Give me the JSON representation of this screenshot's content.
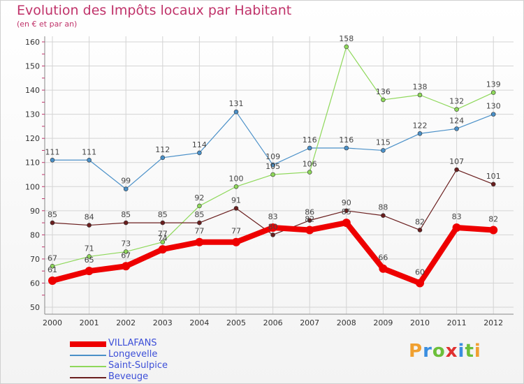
{
  "title": "Evolution des Impôts locaux par Habitant",
  "subtitle": "(en € et par an)",
  "logo": {
    "letters": [
      "P",
      "r",
      "o",
      "x",
      "i",
      "t",
      "i"
    ],
    "colors": [
      "#f0a030",
      "#3a8ee0",
      "#6cbf3a",
      "#e03030",
      "#3a8ee0",
      "#6cbf3a",
      "#f0a030"
    ]
  },
  "chart_data": {
    "type": "line",
    "title": "Evolution des Impôts locaux par Habitant",
    "subtitle": "(en € et par an)",
    "x": [
      "2000",
      "2001",
      "2002",
      "2003",
      "2004",
      "2005",
      "2006",
      "2007",
      "2008",
      "2009",
      "2010",
      "2011",
      "2012"
    ],
    "ylim": [
      50,
      160
    ],
    "yticks": [
      50,
      60,
      70,
      80,
      90,
      100,
      110,
      120,
      130,
      140,
      150,
      160
    ],
    "grid": true,
    "series": [
      {
        "name": "VILLAFANS",
        "color": "#ee0000",
        "line_width": 8,
        "marker_radius": 6,
        "values": [
          61,
          65,
          67,
          74,
          77,
          77,
          83,
          82,
          85,
          66,
          60,
          83,
          82
        ],
        "labels": [
          "61",
          "65",
          "67",
          "74",
          "77",
          "77",
          "83",
          "82",
          "85",
          "66",
          "60",
          "83",
          "82"
        ]
      },
      {
        "name": "Longevelle",
        "color": "#4a90c8",
        "line_width": 1.2,
        "marker_radius": 3,
        "values": [
          111,
          111,
          99,
          112,
          114,
          131,
          109,
          116,
          116,
          115,
          122,
          124,
          130
        ],
        "labels": [
          "111",
          "111",
          "99",
          "112",
          "114",
          "131",
          "109",
          "116",
          "116",
          "115",
          "122",
          "124",
          "130"
        ]
      },
      {
        "name": "Saint-Sulpice",
        "color": "#8ed85a",
        "line_width": 1.2,
        "marker_radius": 3,
        "values": [
          67,
          71,
          73,
          77,
          92,
          100,
          105,
          106,
          158,
          136,
          138,
          132,
          139
        ],
        "labels": [
          "67",
          "71",
          "73",
          "77",
          "92",
          "100",
          "105",
          "106",
          "158",
          "136",
          "138",
          "132",
          "139"
        ]
      },
      {
        "name": "Beveuge",
        "color": "#6a1e1e",
        "line_width": 1.2,
        "marker_radius": 3,
        "values": [
          85,
          84,
          85,
          85,
          85,
          91,
          80,
          86,
          90,
          88,
          82,
          107,
          101
        ],
        "labels": [
          "85",
          "84",
          "85",
          "85",
          "85",
          "91",
          "80",
          "86",
          "90",
          "88",
          "82",
          "107",
          "101"
        ]
      }
    ],
    "legend_position": "bottom-left"
  }
}
